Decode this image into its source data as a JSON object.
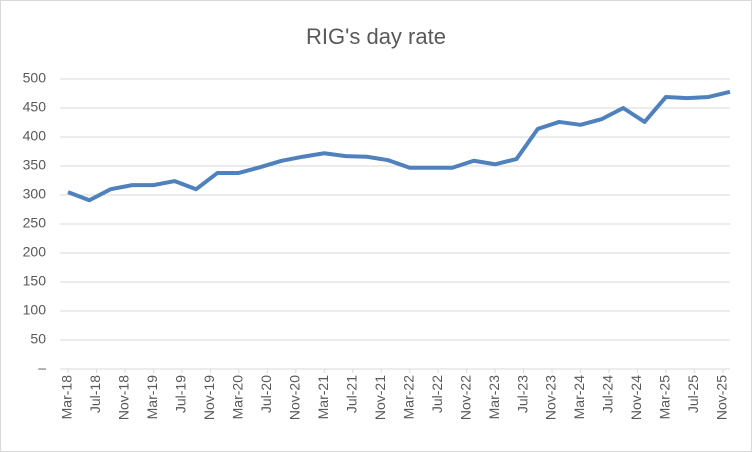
{
  "chart_data": {
    "type": "line",
    "title": "RIG's day rate",
    "x": [
      "2018-03",
      "2018-06",
      "2018-09",
      "2018-12",
      "2019-03",
      "2019-06",
      "2019-09",
      "2019-12",
      "2020-03",
      "2020-06",
      "2020-09",
      "2020-12",
      "2021-03",
      "2021-06",
      "2021-09",
      "2021-12",
      "2022-03",
      "2022-06",
      "2022-09",
      "2022-12",
      "2023-03",
      "2023-06",
      "2023-09",
      "2023-12",
      "2024-03",
      "2024-06",
      "2024-09",
      "2024-12",
      "2025-03",
      "2025-06",
      "2025-09",
      "2025-12"
    ],
    "series": [
      {
        "name": "RIG's day rate",
        "color": "#4f81bd",
        "values": [
          305,
          291,
          310,
          317,
          317,
          324,
          310,
          338,
          338,
          348,
          359,
          366,
          372,
          367,
          366,
          360,
          347,
          347,
          347,
          359,
          353,
          362,
          414,
          426,
          421,
          431,
          450,
          426,
          469,
          467,
          469,
          478
        ]
      }
    ],
    "xlim": [
      "2018-03",
      "2025-12"
    ],
    "xticks": [
      {
        "value": "2018-03",
        "label": "Mar-18"
      },
      {
        "value": "2018-07",
        "label": "Jul-18"
      },
      {
        "value": "2018-11",
        "label": "Nov-18"
      },
      {
        "value": "2019-03",
        "label": "Mar-19"
      },
      {
        "value": "2019-07",
        "label": "Jul-19"
      },
      {
        "value": "2019-11",
        "label": "Nov-19"
      },
      {
        "value": "2020-03",
        "label": "Mar-20"
      },
      {
        "value": "2020-07",
        "label": "Jul-20"
      },
      {
        "value": "2020-11",
        "label": "Nov-20"
      },
      {
        "value": "2021-03",
        "label": "Mar-21"
      },
      {
        "value": "2021-07",
        "label": "Jul-21"
      },
      {
        "value": "2021-11",
        "label": "Nov-21"
      },
      {
        "value": "2022-03",
        "label": "Mar-22"
      },
      {
        "value": "2022-07",
        "label": "Jul-22"
      },
      {
        "value": "2022-11",
        "label": "Nov-22"
      },
      {
        "value": "2023-03",
        "label": "Mar-23"
      },
      {
        "value": "2023-07",
        "label": "Jul-23"
      },
      {
        "value": "2023-11",
        "label": "Nov-23"
      },
      {
        "value": "2024-03",
        "label": "Mar-24"
      },
      {
        "value": "2024-07",
        "label": "Jul-24"
      },
      {
        "value": "2024-11",
        "label": "Nov-24"
      },
      {
        "value": "2025-03",
        "label": "Mar-25"
      },
      {
        "value": "2025-07",
        "label": "Jul-25"
      },
      {
        "value": "2025-11",
        "label": "Nov-25"
      }
    ],
    "ylim": [
      0,
      500
    ],
    "yticks": [
      {
        "value": 0,
        "label": "–"
      },
      50,
      100,
      150,
      200,
      250,
      300,
      350,
      400,
      450,
      500
    ],
    "grid": true
  }
}
